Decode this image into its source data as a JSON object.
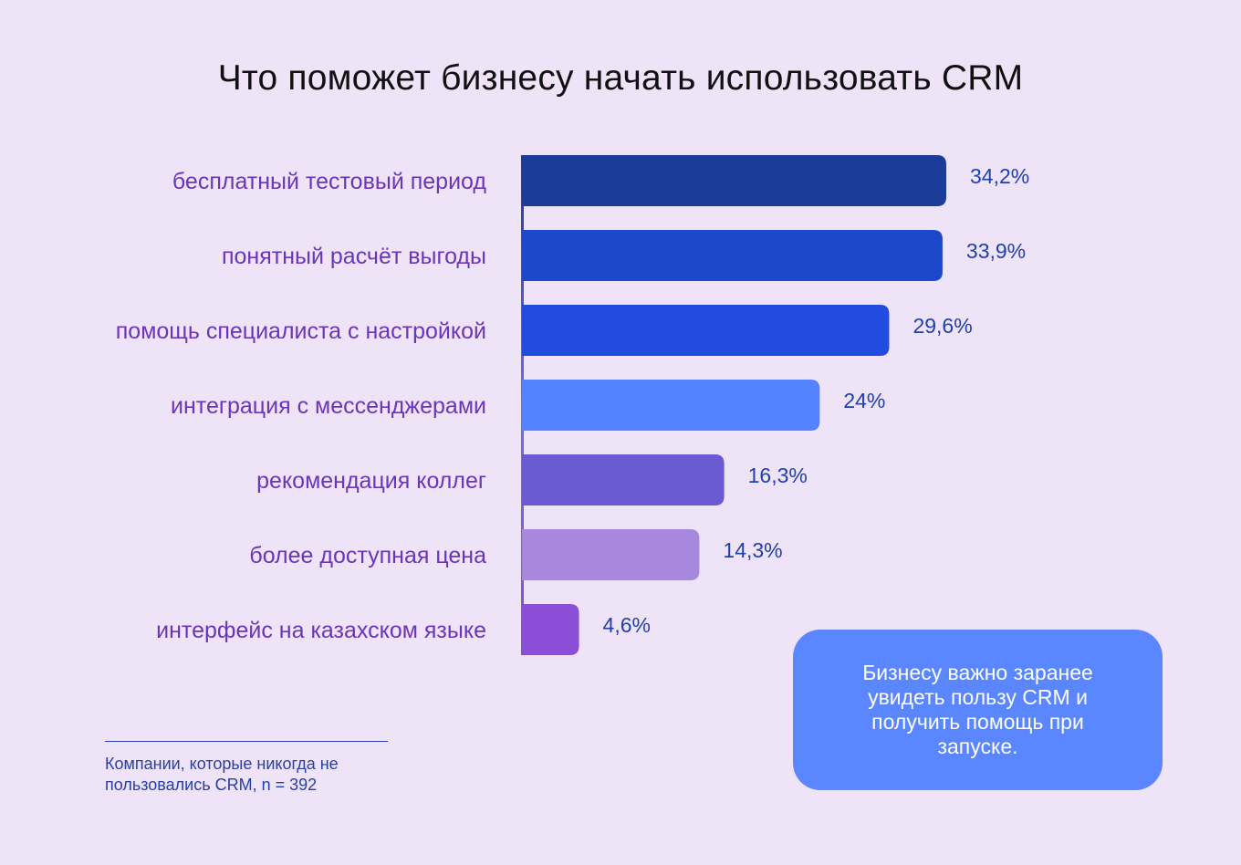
{
  "chart_data": {
    "type": "bar",
    "orientation": "horizontal",
    "title": "Что поможет бизнесу начать использовать CRM",
    "categories": [
      "бесплатный тестовый период",
      "понятный расчёт выгоды",
      "помощь специалиста с настройкой",
      "интеграция с мессенджерами",
      "рекомендация коллег",
      "более доступная цена",
      "интерфейс на казахском языке"
    ],
    "values": [
      34.2,
      33.9,
      29.6,
      24,
      16.3,
      14.3,
      4.6
    ],
    "value_labels": [
      "34,2%",
      "33,9%",
      "29,6%",
      "24%",
      "16,3%",
      "14,3%",
      "4,6%"
    ],
    "bar_colors": [
      "#1b3c99",
      "#1c48c9",
      "#224ce0",
      "#5483ff",
      "#6a5bd2",
      "#a887de",
      "#8a4fd6"
    ],
    "xlim": [
      0,
      34.2
    ],
    "grid": false,
    "legend": "none"
  },
  "note": "Компании, которые никогда не пользовались CRM, n = 392",
  "callout": "Бизнесу важно заранее увидеть пользу CRM и получить помощь при запуске.",
  "colors": {
    "background": "#efe3f8",
    "category_text": "#6a35b8",
    "value_text": "#1f3fae",
    "callout_bg": "#5a86ff"
  }
}
